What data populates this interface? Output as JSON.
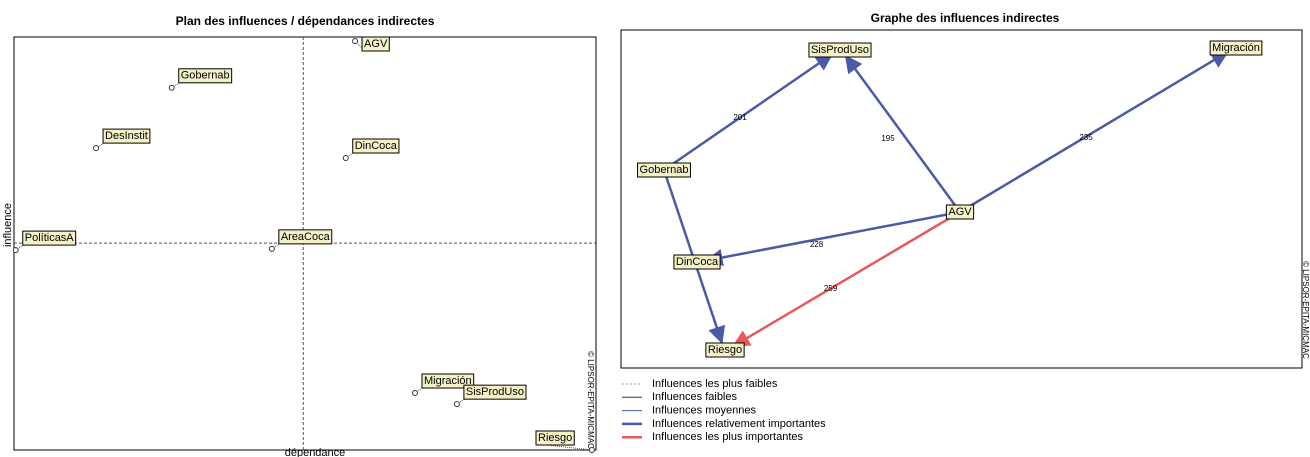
{
  "chart_data": [
    {
      "type": "scatter",
      "title": "Plan des influences / dépendances indirectes",
      "xlabel": "dépendance",
      "ylabel": "influence",
      "watermark": "© LIPSOR-EPITA-MICMAC",
      "point_labels": [
        "AGV",
        "Gobernab",
        "DesInstit",
        "DinCoca",
        "PolíticasA",
        "AreaCoca",
        "Migración",
        "SisProdUso",
        "Riesgo"
      ],
      "x": [
        58.6,
        27.1,
        14.1,
        57.0,
        0.3,
        44.3,
        68.9,
        76.1,
        99.3
      ],
      "values": [
        99.0,
        87.7,
        73.1,
        70.7,
        48.4,
        48.7,
        13.8,
        11.1,
        0
      ],
      "xlim": [
        0,
        100
      ],
      "ylim": [
        0,
        100
      ],
      "mean_lines": {
        "x": 49.7,
        "y": 50.1
      }
    },
    {
      "type": "network",
      "title": "Graphe des influences indirectes",
      "watermark": "© LIPSOR-EPITA-MICMAC",
      "nodes": [
        "SisProdUso",
        "Migración",
        "Gobernab",
        "AGV",
        "DinCoca",
        "Riesgo"
      ],
      "edges": [
        {
          "from": 2,
          "to": 0,
          "weight": 201,
          "level": 3
        },
        {
          "from": 3,
          "to": 0,
          "weight": 195,
          "level": 3
        },
        {
          "from": 3,
          "to": 1,
          "weight": 235,
          "level": 3
        },
        {
          "from": 3,
          "to": 4,
          "weight": 228,
          "level": 3
        },
        {
          "from": 3,
          "to": 5,
          "weight": 259,
          "level": 4
        },
        {
          "from": 2,
          "to": 5,
          "weight": null,
          "level": 3
        }
      ],
      "legend": [
        {
          "name": "Influences les plus faibles",
          "color": "#999999",
          "style": "dotted"
        },
        {
          "name": "Influences faibles",
          "color": "#333333",
          "style": "thin"
        },
        {
          "name": "Influences moyennes",
          "color": "#4a5aa8",
          "style": "thin"
        },
        {
          "name": "Influences relativement importantes",
          "color": "#4a5aa8",
          "style": "thick"
        },
        {
          "name": "Influences les plus importantes",
          "color": "#e85a5a",
          "style": "thick"
        }
      ]
    }
  ]
}
